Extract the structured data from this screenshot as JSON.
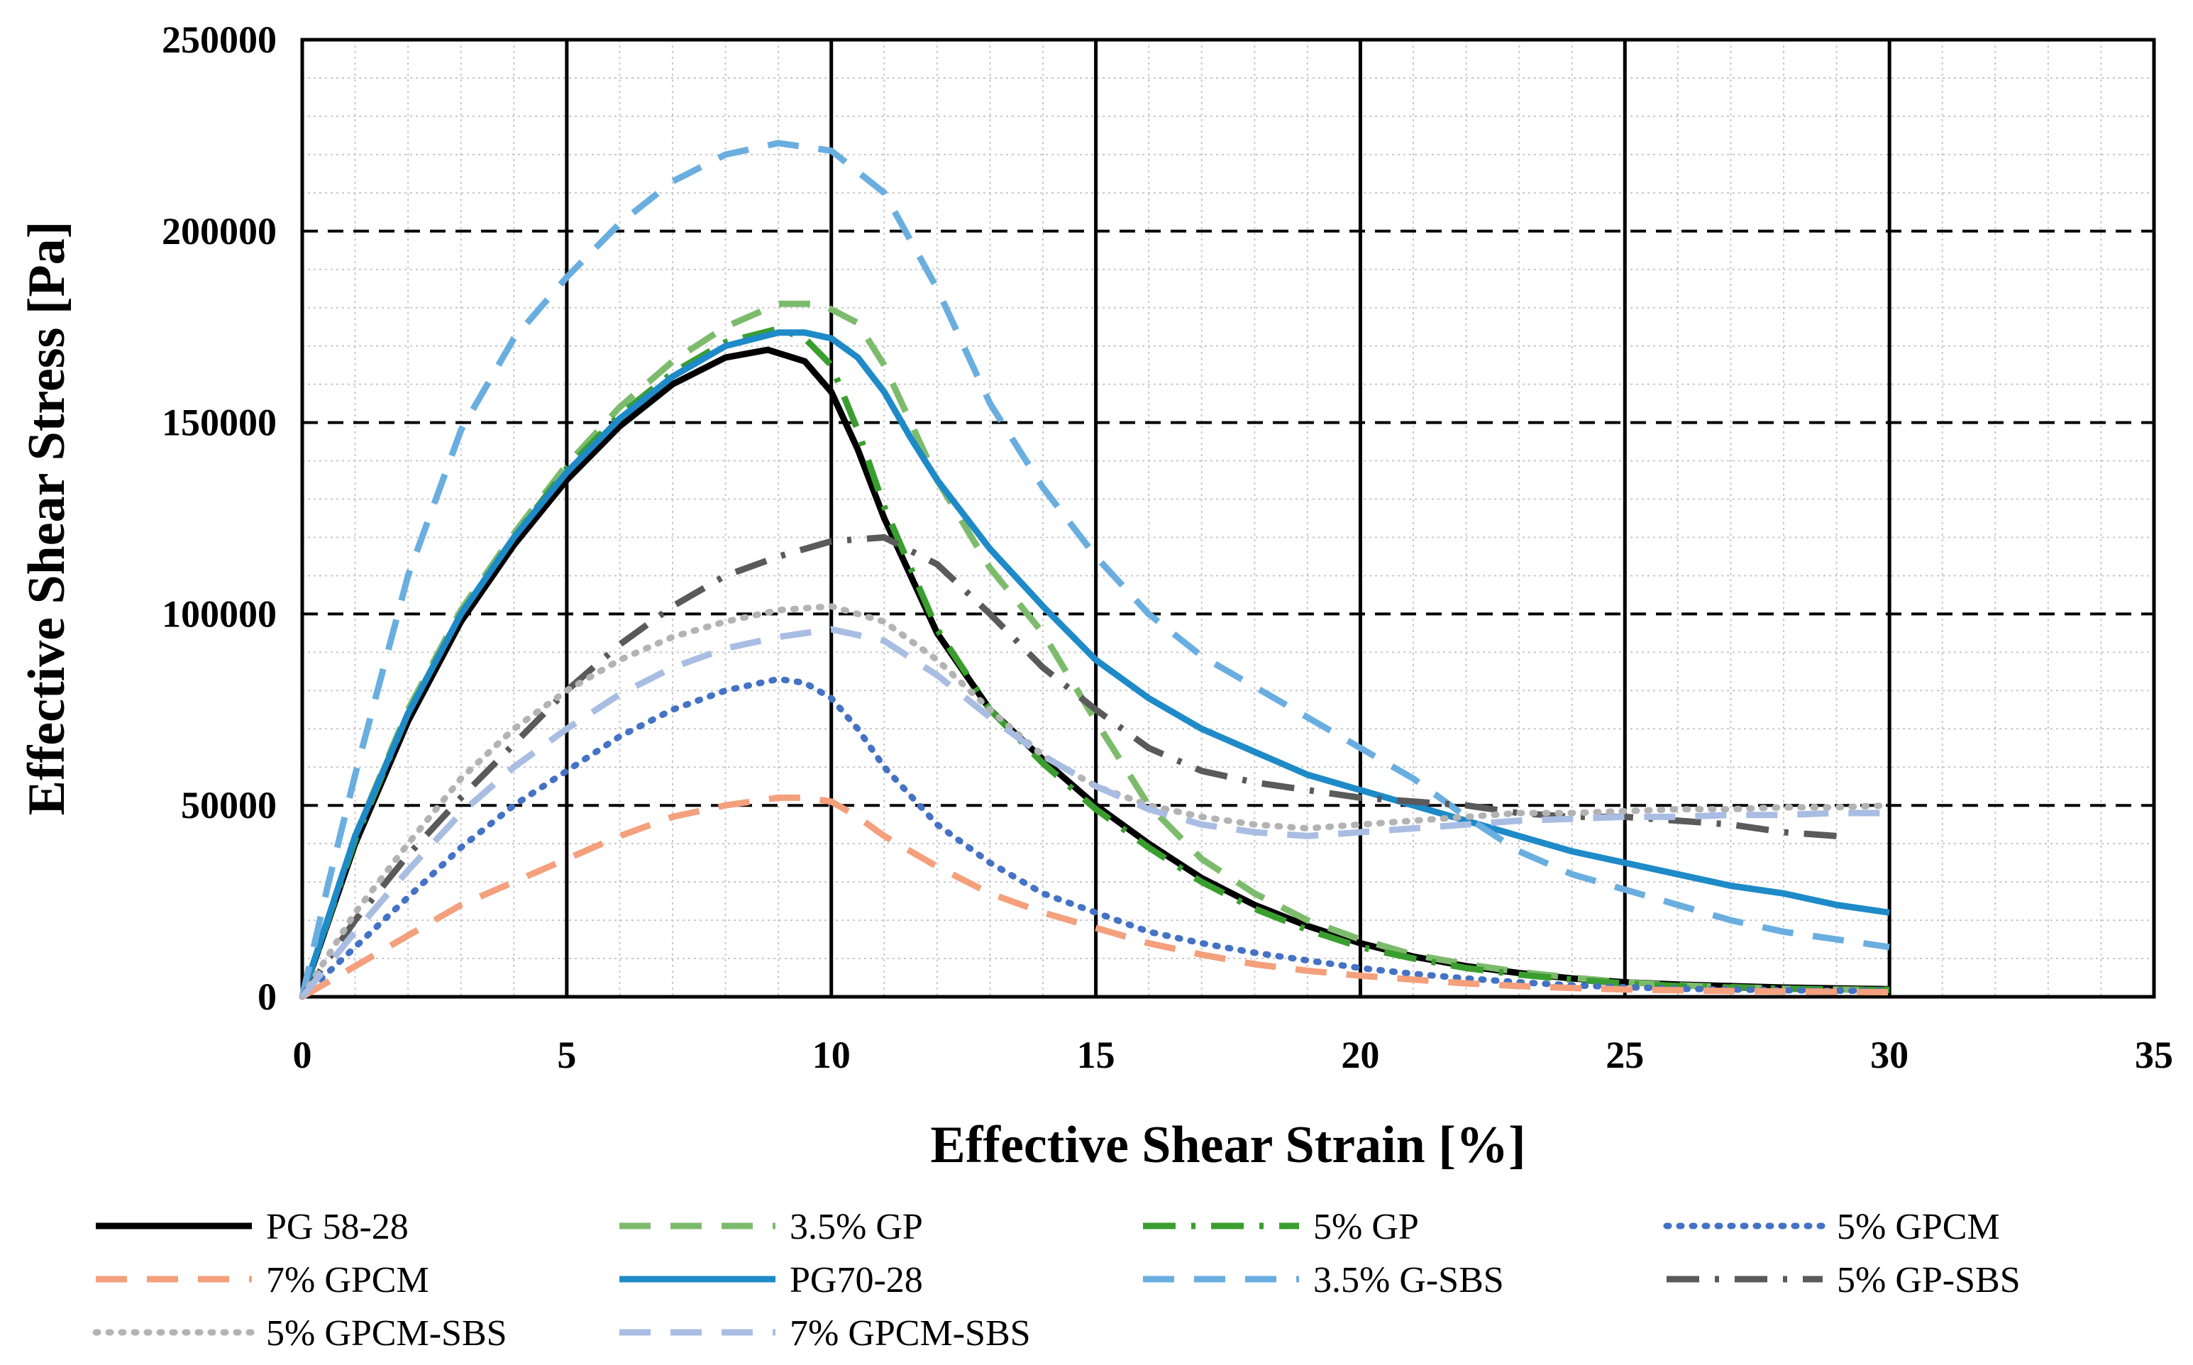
{
  "chart_data": {
    "type": "line",
    "title": "",
    "xlabel": "Effective Shear Strain [%]",
    "ylabel": "Effective Shear Stress [Pa]",
    "xlim": [
      0,
      35
    ],
    "ylim": [
      0,
      250000
    ],
    "xticks": [
      0,
      5,
      10,
      15,
      20,
      25,
      30,
      35
    ],
    "yticks": [
      0,
      50000,
      100000,
      150000,
      200000,
      250000
    ],
    "xtick_labels": [
      "0",
      "5",
      "10",
      "15",
      "20",
      "25",
      "30",
      "35"
    ],
    "ytick_labels": [
      "0",
      "50000",
      "100000",
      "150000",
      "200000",
      "250000"
    ],
    "grid": "major vertical solid, major horizontal dashed, minor dotted",
    "legend_position": "bottom",
    "series": [
      {
        "name": "PG 58-28",
        "color": "#000000",
        "style": "solid",
        "x": [
          0,
          1,
          2,
          3,
          4,
          5,
          6,
          7,
          8,
          8.8,
          9.5,
          10,
          10.5,
          11,
          12,
          13,
          14,
          15,
          16,
          17,
          18,
          19,
          20,
          21,
          22,
          23,
          24,
          25,
          26,
          27,
          28,
          29,
          30
        ],
        "y": [
          0,
          40000,
          72000,
          98000,
          118000,
          135000,
          149000,
          160000,
          167000,
          169000,
          166000,
          158000,
          143000,
          125000,
          95000,
          75000,
          62000,
          50000,
          40000,
          31000,
          24000,
          18500,
          14000,
          10500,
          8000,
          6200,
          4800,
          3800,
          3200,
          2800,
          2400,
          2200,
          2000
        ]
      },
      {
        "name": "3.5% GP",
        "color": "#7dbb6c",
        "style": "dashed",
        "x": [
          0,
          1,
          2,
          3,
          4,
          5,
          6,
          7,
          8,
          9,
          9.8,
          10.5,
          11,
          11.5,
          12,
          13,
          14,
          15,
          16,
          17,
          18,
          19,
          20,
          21,
          22,
          23,
          24,
          25,
          26,
          27,
          28,
          29,
          30
        ],
        "y": [
          0,
          42000,
          75000,
          101000,
          121000,
          139000,
          154000,
          166000,
          175000,
          181000,
          181000,
          176000,
          165000,
          150000,
          135000,
          112000,
          95000,
          72000,
          50000,
          36000,
          27000,
          20000,
          15000,
          11000,
          8500,
          6500,
          5000,
          3800,
          3000,
          2500,
          2100,
          1900,
          1800
        ]
      },
      {
        "name": "5% GP",
        "color": "#3a9e2f",
        "style": "dashdot",
        "x": [
          0,
          1,
          2,
          3,
          4,
          5,
          6,
          7,
          8,
          9,
          9.5,
          10,
          10.5,
          11,
          12,
          13,
          14,
          15,
          16,
          17,
          18,
          19,
          20,
          21,
          22,
          23,
          24,
          25,
          26,
          27,
          28,
          29,
          30
        ],
        "y": [
          0,
          41000,
          74000,
          100000,
          120000,
          138000,
          152000,
          163000,
          171000,
          174500,
          172000,
          165000,
          148000,
          128000,
          96000,
          75000,
          61000,
          49000,
          39000,
          30000,
          23000,
          17500,
          13000,
          10000,
          7500,
          5800,
          4500,
          3500,
          2800,
          2400,
          2100,
          1900,
          1700
        ]
      },
      {
        "name": "5% GPCM",
        "color": "#4472c4",
        "style": "dotted",
        "x": [
          0,
          1,
          2,
          3,
          4,
          5,
          6,
          7,
          8,
          9,
          9.5,
          10,
          10.5,
          11,
          12,
          13,
          14,
          15,
          16,
          17,
          18,
          19,
          20,
          21,
          22,
          23,
          24,
          25,
          26,
          27,
          28,
          29,
          30
        ],
        "y": [
          0,
          13000,
          26000,
          39000,
          50000,
          59000,
          68000,
          75000,
          80000,
          83000,
          82000,
          78000,
          70000,
          60000,
          45000,
          35000,
          27000,
          22000,
          17000,
          14000,
          11500,
          9500,
          7500,
          6000,
          4800,
          3800,
          3000,
          2500,
          2100,
          1900,
          1700,
          1600,
          1500
        ]
      },
      {
        "name": "7% GPCM",
        "color": "#f4a07c",
        "style": "dashed",
        "x": [
          0,
          1,
          2,
          3,
          4,
          5,
          6,
          7,
          8,
          9,
          9.5,
          10,
          10.5,
          11,
          12,
          13,
          14,
          15,
          16,
          17,
          18,
          19,
          20,
          21,
          22,
          23,
          24,
          25,
          26,
          27,
          28,
          29,
          30
        ],
        "y": [
          0,
          8000,
          16000,
          24000,
          30000,
          36000,
          42000,
          47000,
          50000,
          52000,
          52000,
          51000,
          47000,
          42000,
          34000,
          27000,
          22000,
          18000,
          14000,
          11000,
          8500,
          6800,
          5500,
          4500,
          3500,
          2800,
          2300,
          1900,
          1700,
          1500,
          1400,
          1300,
          1200
        ]
      },
      {
        "name": "PG70-28",
        "color": "#1e8ac8",
        "style": "solid",
        "x": [
          0,
          1,
          2,
          3,
          4,
          5,
          6,
          7,
          8,
          9,
          9.5,
          10,
          10.5,
          11,
          11.5,
          12,
          13,
          14,
          15,
          16,
          17,
          18,
          19,
          20,
          21,
          22,
          23,
          24,
          25,
          26,
          27,
          28,
          29,
          30
        ],
        "y": [
          0,
          42000,
          74000,
          100000,
          120000,
          137000,
          151000,
          162000,
          170000,
          173500,
          173500,
          172000,
          167000,
          158000,
          146000,
          135000,
          117000,
          102000,
          88000,
          78000,
          70000,
          64000,
          58000,
          54000,
          50000,
          46000,
          42000,
          38000,
          35000,
          32000,
          29000,
          27000,
          24000,
          22000
        ]
      },
      {
        "name": "3.5% G-SBS",
        "color": "#6aaee0",
        "style": "dashed",
        "x": [
          0,
          0.5,
          1,
          2,
          3,
          4,
          5,
          6,
          7,
          8,
          9,
          10,
          11,
          12,
          13,
          14,
          15,
          16,
          17,
          18,
          19,
          20,
          21,
          22,
          23,
          24,
          25,
          26,
          27,
          28,
          29,
          30
        ],
        "y": [
          0,
          30000,
          58000,
          110000,
          148000,
          172000,
          188000,
          202000,
          213000,
          220000,
          223000,
          221000,
          210000,
          185000,
          155000,
          133000,
          115000,
          100000,
          89000,
          81000,
          73000,
          65000,
          57000,
          47000,
          38000,
          32000,
          28000,
          24000,
          20000,
          17000,
          15000,
          13000
        ]
      },
      {
        "name": "5% GP-SBS",
        "color": "#5a5a5a",
        "style": "dashdot",
        "x": [
          0,
          1,
          2,
          3,
          4,
          5,
          6,
          7,
          8,
          9,
          10,
          11,
          12,
          13,
          14,
          15,
          16,
          17,
          18,
          19,
          20,
          21,
          22,
          23,
          24,
          25,
          26,
          27,
          28,
          29
        ],
        "y": [
          0,
          20000,
          37000,
          52000,
          66000,
          80000,
          92000,
          102000,
          110000,
          115000,
          119000,
          120000,
          113000,
          100000,
          86000,
          75000,
          65000,
          59000,
          56000,
          54000,
          52000,
          51000,
          50000,
          48000,
          47000,
          47000,
          46000,
          45000,
          43000,
          42000
        ]
      },
      {
        "name": "5% GPCM-SBS",
        "color": "#b3b3b3",
        "style": "dotted",
        "x": [
          0,
          1,
          2,
          3,
          4,
          5,
          6,
          7,
          8,
          9,
          10,
          11,
          12,
          13,
          14,
          15,
          16,
          17,
          18,
          19,
          20,
          21,
          22,
          23,
          24,
          25,
          26,
          27,
          28,
          29,
          30
        ],
        "y": [
          0,
          22000,
          40000,
          57000,
          70000,
          80000,
          88000,
          94000,
          98000,
          101000,
          102000,
          98000,
          88000,
          75000,
          63000,
          55000,
          50000,
          47000,
          45000,
          44000,
          45000,
          46000,
          47000,
          48000,
          48000,
          48500,
          49000,
          49000,
          49500,
          49500,
          50000
        ]
      },
      {
        "name": "7% GPCM-SBS",
        "color": "#a9bde3",
        "style": "dashed",
        "x": [
          0,
          1,
          2,
          3,
          4,
          5,
          6,
          7,
          8,
          9,
          10,
          11,
          12,
          13,
          14,
          15,
          16,
          17,
          18,
          19,
          20,
          21,
          22,
          23,
          24,
          25,
          26,
          27,
          28,
          29,
          30
        ],
        "y": [
          0,
          17000,
          33000,
          48000,
          60000,
          70000,
          79000,
          86000,
          91000,
          94000,
          96000,
          93000,
          84000,
          73000,
          63000,
          55000,
          49000,
          45000,
          43000,
          42000,
          43000,
          44000,
          45000,
          46000,
          46500,
          47000,
          47000,
          47500,
          47500,
          48000,
          48000
        ]
      }
    ]
  }
}
